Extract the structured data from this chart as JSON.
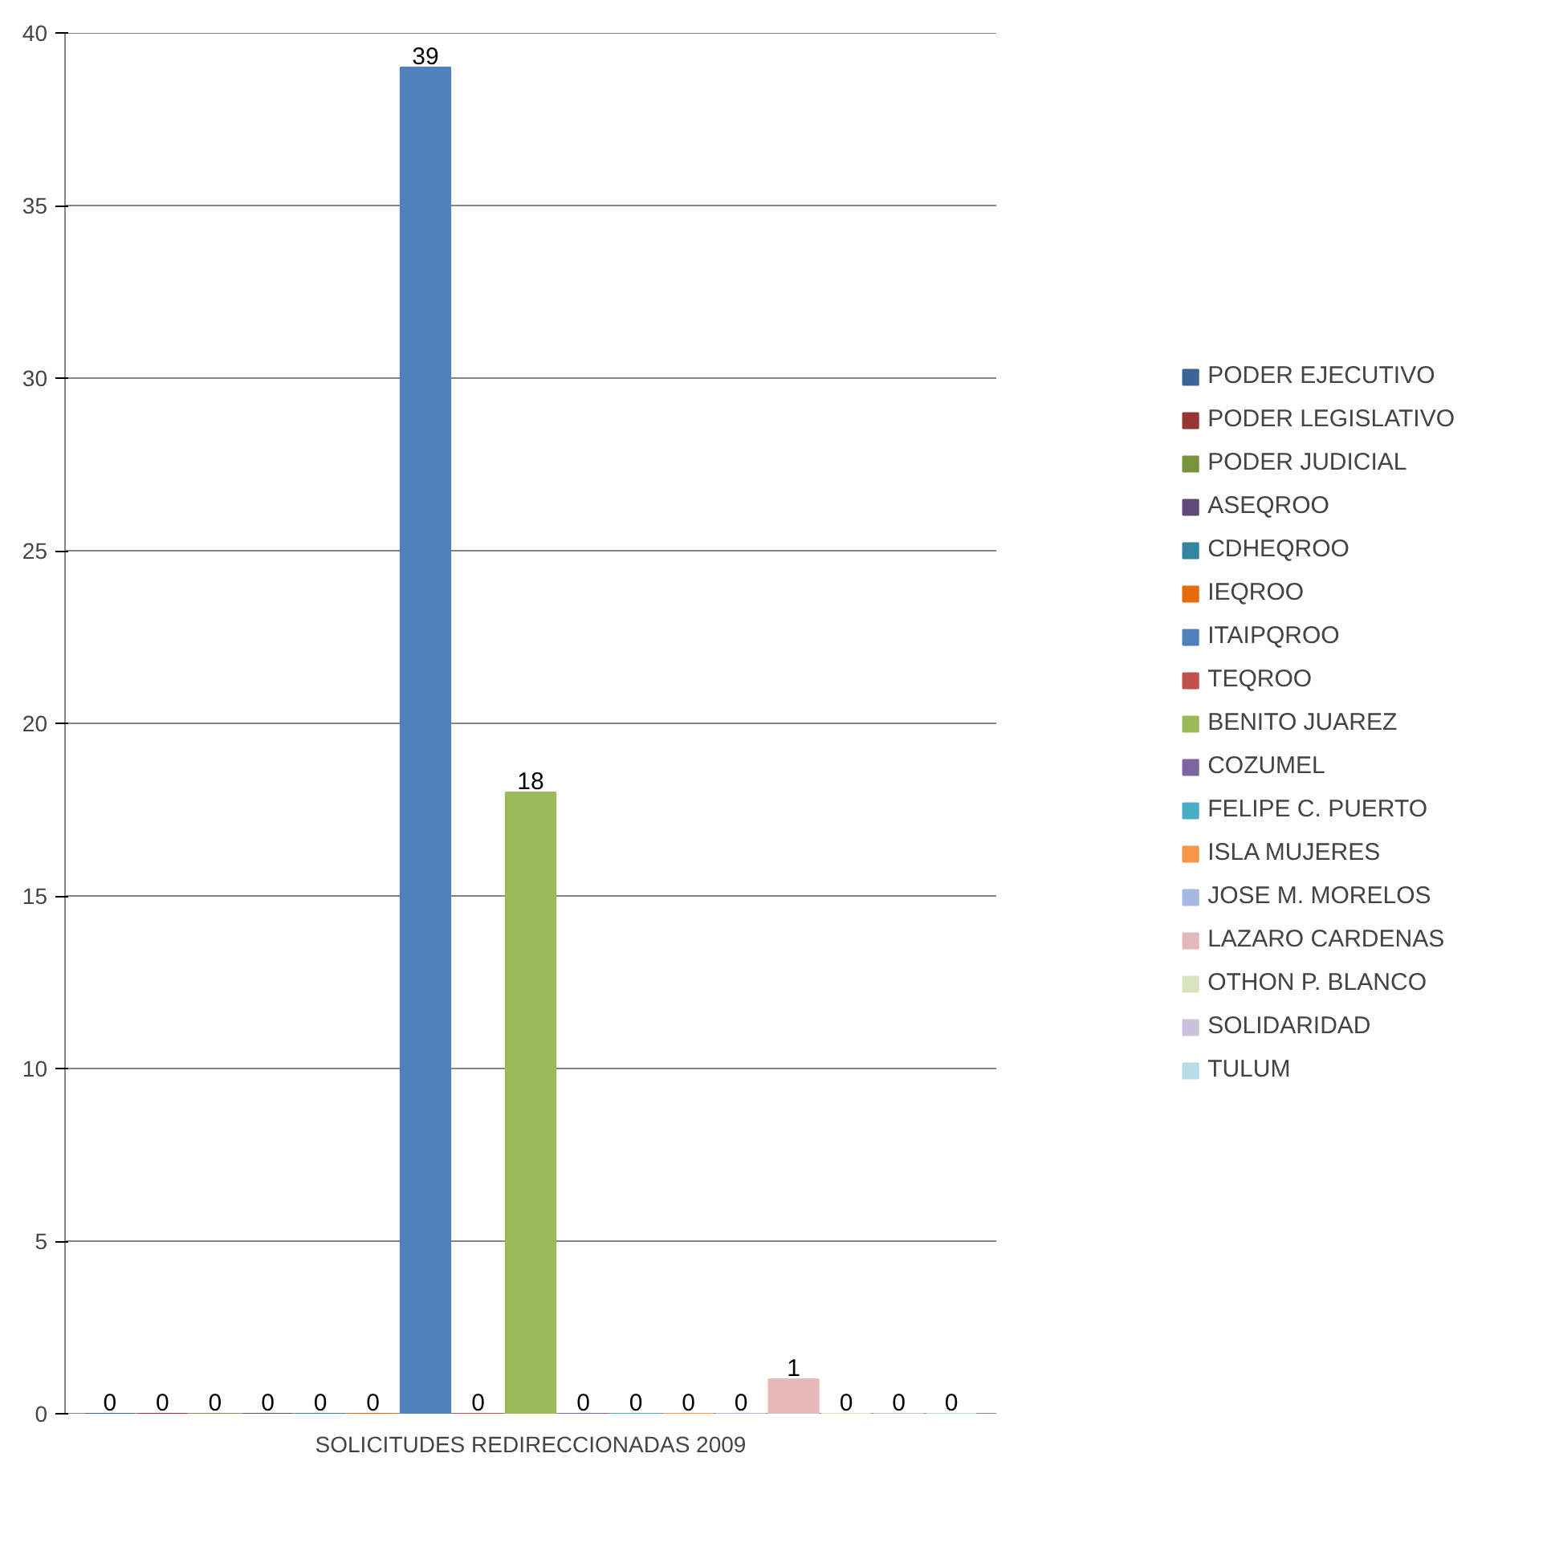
{
  "chart_data": {
    "type": "bar",
    "categories": [
      "SOLICITUDES REDIRECCIONADAS 2009"
    ],
    "ylim": [
      0,
      40
    ],
    "yticks": [
      0,
      5,
      10,
      15,
      20,
      25,
      30,
      35,
      40
    ],
    "grid": "y",
    "legend": "right",
    "data_labels": true,
    "series": [
      {
        "name": "PODER EJECUTIVO",
        "color": "#3c6496",
        "values": [
          0
        ]
      },
      {
        "name": "PODER LEGISLATIVO",
        "color": "#953735",
        "values": [
          0
        ]
      },
      {
        "name": "PODER JUDICIAL",
        "color": "#77933c",
        "values": [
          0
        ]
      },
      {
        "name": "ASEQROO",
        "color": "#604a7b",
        "values": [
          0
        ]
      },
      {
        "name": "CDHEQROO",
        "color": "#31859c",
        "values": [
          0
        ]
      },
      {
        "name": "IEQROO",
        "color": "#e46c0a",
        "values": [
          0
        ]
      },
      {
        "name": "ITAIPQROO",
        "color": "#4f81bd",
        "values": [
          39
        ]
      },
      {
        "name": "TEQROO",
        "color": "#c0504d",
        "values": [
          0
        ]
      },
      {
        "name": "BENITO JUAREZ",
        "color": "#9bbb59",
        "values": [
          18
        ]
      },
      {
        "name": "COZUMEL",
        "color": "#8064a2",
        "values": [
          0
        ]
      },
      {
        "name": "FELIPE C. PUERTO",
        "color": "#4bacc6",
        "values": [
          0
        ]
      },
      {
        "name": "ISLA MUJERES",
        "color": "#f79646",
        "values": [
          0
        ]
      },
      {
        "name": "JOSE M. MORELOS",
        "color": "#a7b9e3",
        "values": [
          0
        ]
      },
      {
        "name": "LAZARO CARDENAS",
        "color": "#e6b9b8",
        "values": [
          1
        ]
      },
      {
        "name": "OTHON P. BLANCO",
        "color": "#d7e4bd",
        "values": [
          0
        ]
      },
      {
        "name": "SOLIDARIDAD",
        "color": "#ccc1da",
        "values": [
          0
        ]
      },
      {
        "name": "TULUM",
        "color": "#b7dee8",
        "values": [
          0
        ]
      }
    ]
  }
}
